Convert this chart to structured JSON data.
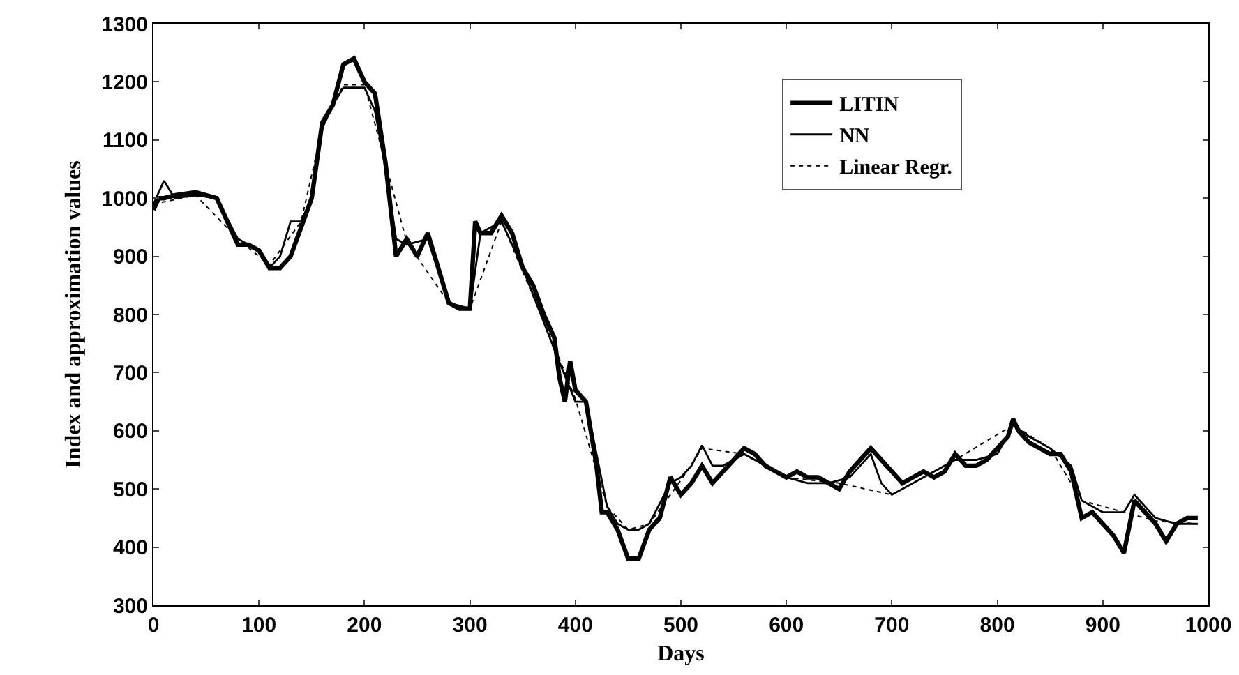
{
  "chart_data": {
    "type": "line",
    "xlabel": "Days",
    "ylabel": "Index and approximation values",
    "xlim": [
      0,
      1000
    ],
    "ylim": [
      300,
      1300
    ],
    "xticks": [
      0,
      100,
      200,
      300,
      400,
      500,
      600,
      700,
      800,
      900,
      1000
    ],
    "yticks": [
      300,
      400,
      500,
      600,
      700,
      800,
      900,
      1000,
      1100,
      1200,
      1300
    ],
    "grid": false,
    "legend": "top right",
    "marker": "none",
    "series": [
      {
        "name": "LITIN",
        "color": "#000000",
        "line_style": "solid",
        "x": [
          0,
          5,
          10,
          20,
          40,
          60,
          70,
          80,
          90,
          100,
          110,
          120,
          130,
          140,
          150,
          160,
          170,
          180,
          190,
          200,
          210,
          220,
          225,
          230,
          240,
          250,
          260,
          270,
          280,
          290,
          300,
          305,
          310,
          320,
          330,
          340,
          350,
          360,
          370,
          380,
          385,
          390,
          395,
          400,
          410,
          420,
          425,
          430,
          440,
          450,
          460,
          470,
          480,
          490,
          500,
          510,
          520,
          530,
          540,
          550,
          560,
          570,
          580,
          590,
          600,
          610,
          620,
          630,
          640,
          650,
          660,
          670,
          680,
          690,
          700,
          710,
          720,
          730,
          740,
          750,
          760,
          770,
          780,
          790,
          800,
          810,
          815,
          820,
          830,
          840,
          850,
          860,
          870,
          880,
          890,
          900,
          910,
          920,
          930,
          940,
          950,
          960,
          970,
          980,
          990
        ],
        "values": [
          980,
          1000,
          1000,
          1005,
          1010,
          1000,
          960,
          920,
          920,
          910,
          880,
          880,
          900,
          950,
          1000,
          1130,
          1160,
          1230,
          1240,
          1200,
          1180,
          1060,
          980,
          900,
          930,
          900,
          940,
          880,
          820,
          810,
          810,
          960,
          940,
          940,
          970,
          940,
          880,
          850,
          800,
          760,
          690,
          650,
          720,
          670,
          650,
          540,
          460,
          460,
          430,
          380,
          380,
          430,
          450,
          520,
          490,
          510,
          540,
          510,
          530,
          550,
          570,
          560,
          540,
          530,
          520,
          530,
          520,
          520,
          510,
          500,
          530,
          550,
          570,
          550,
          530,
          510,
          520,
          530,
          520,
          530,
          560,
          540,
          540,
          550,
          570,
          590,
          620,
          600,
          580,
          570,
          560,
          560,
          530,
          450,
          460,
          440,
          420,
          390,
          480,
          460,
          440,
          410,
          440,
          450,
          450
        ]
      },
      {
        "name": "NN",
        "color": "#000000",
        "line_style": "solid",
        "x": [
          0,
          10,
          20,
          40,
          60,
          80,
          100,
          110,
          120,
          130,
          140,
          150,
          160,
          170,
          180,
          200,
          210,
          220,
          230,
          240,
          260,
          280,
          300,
          310,
          330,
          350,
          380,
          400,
          410,
          420,
          430,
          440,
          450,
          460,
          470,
          490,
          500,
          510,
          520,
          530,
          540,
          560,
          580,
          600,
          620,
          640,
          660,
          680,
          690,
          700,
          720,
          740,
          760,
          780,
          800,
          815,
          830,
          850,
          870,
          880,
          900,
          920,
          930,
          950,
          970,
          990
        ],
        "values": [
          990,
          1030,
          1000,
          1005,
          1000,
          930,
          910,
          880,
          900,
          960,
          960,
          1000,
          1120,
          1160,
          1190,
          1190,
          1150,
          1050,
          930,
          920,
          930,
          820,
          810,
          940,
          960,
          880,
          740,
          650,
          650,
          560,
          470,
          440,
          430,
          430,
          440,
          510,
          520,
          540,
          575,
          540,
          540,
          560,
          540,
          520,
          510,
          510,
          520,
          560,
          510,
          490,
          510,
          530,
          550,
          550,
          560,
          610,
          590,
          570,
          540,
          480,
          460,
          460,
          490,
          450,
          440,
          440
        ]
      },
      {
        "name": "Linear Regr.",
        "color": "#000000",
        "line_style": "dotted",
        "x": [
          0,
          40,
          80,
          110,
          140,
          160,
          180,
          200,
          220,
          240,
          280,
          300,
          330,
          380,
          400,
          430,
          450,
          470,
          500,
          520,
          560,
          600,
          650,
          700,
          760,
          815,
          850,
          880,
          920,
          950,
          990
        ],
        "values": [
          990,
          1005,
          930,
          885,
          960,
          1120,
          1195,
          1195,
          1060,
          925,
          820,
          810,
          960,
          745,
          655,
          470,
          430,
          440,
          515,
          570,
          560,
          520,
          510,
          490,
          550,
          610,
          570,
          480,
          460,
          445,
          440
        ]
      }
    ]
  }
}
